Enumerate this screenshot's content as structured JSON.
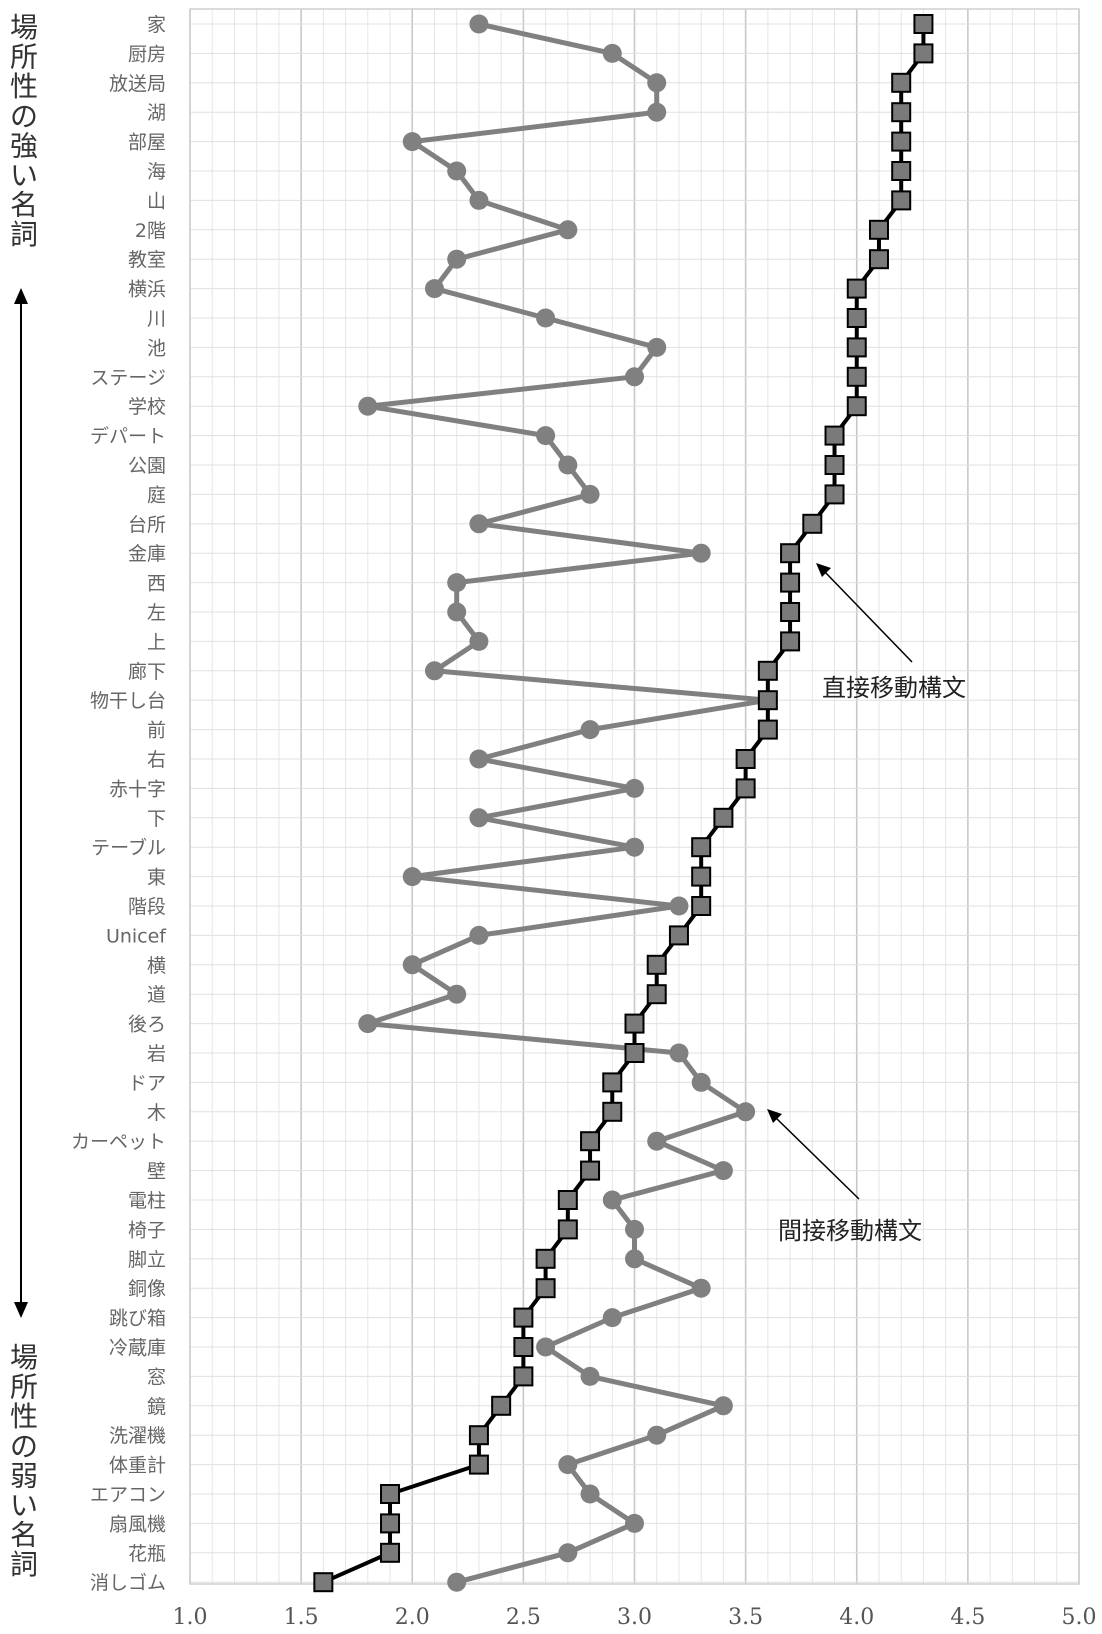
{
  "chart_data": {
    "type": "line",
    "orientation": "horizontal",
    "categories": [
      "家",
      "厨房",
      "放送局",
      "湖",
      "部屋",
      "海",
      "山",
      "2階",
      "教室",
      "横浜",
      "川",
      "池",
      "ステージ",
      "学校",
      "デパート",
      "公園",
      "庭",
      "台所",
      "金庫",
      "西",
      "左",
      "上",
      "廊下",
      "物干し台",
      "前",
      "右",
      "赤十字",
      "下",
      "テーブル",
      "東",
      "階段",
      "Unicef",
      "横",
      "道",
      "後ろ",
      "岩",
      "ドア",
      "木",
      "カーペット",
      "壁",
      "電柱",
      "椅子",
      "脚立",
      "銅像",
      "跳び箱",
      "冷蔵庫",
      "窓",
      "鏡",
      "洗濯機",
      "体重計",
      "エアコン",
      "扇風機",
      "花瓶",
      "消しゴム"
    ],
    "series": [
      {
        "annotation_label": "直接移動構文",
        "marker": "square",
        "color": "#000000",
        "values": [
          4.3,
          4.3,
          4.2,
          4.2,
          4.2,
          4.2,
          4.2,
          4.1,
          4.1,
          4.0,
          4.0,
          4.0,
          4.0,
          4.0,
          3.9,
          3.9,
          3.9,
          3.8,
          3.7,
          3.7,
          3.7,
          3.7,
          3.6,
          3.6,
          3.6,
          3.5,
          3.5,
          3.4,
          3.3,
          3.3,
          3.3,
          3.2,
          3.1,
          3.1,
          3.0,
          3.0,
          2.9,
          2.9,
          2.8,
          2.8,
          2.7,
          2.7,
          2.6,
          2.6,
          2.5,
          2.5,
          2.5,
          2.4,
          2.3,
          2.3,
          1.9,
          1.9,
          1.9,
          1.6
        ]
      },
      {
        "annotation_label": "間接移動構文",
        "marker": "circle",
        "color": "#808080",
        "values": [
          2.3,
          2.9,
          3.1,
          3.1,
          2.0,
          2.2,
          2.3,
          2.7,
          2.2,
          2.1,
          2.6,
          3.1,
          3.0,
          1.8,
          2.6,
          2.7,
          2.8,
          2.3,
          3.3,
          2.2,
          2.2,
          2.3,
          2.1,
          3.6,
          2.8,
          2.3,
          3.0,
          2.3,
          3.0,
          2.0,
          3.2,
          2.3,
          2.0,
          2.2,
          1.8,
          3.2,
          3.3,
          3.5,
          3.1,
          3.4,
          2.9,
          3.0,
          3.0,
          3.3,
          2.9,
          2.6,
          2.8,
          3.4,
          3.1,
          2.7,
          2.8,
          3.0,
          2.7,
          2.2
        ]
      }
    ],
    "xlim": [
      1.0,
      5.0
    ],
    "xticks": [
      "1.0",
      "1.5",
      "2.0",
      "2.5",
      "3.0",
      "3.5",
      "4.0",
      "4.5",
      "5.0"
    ],
    "grid": true,
    "side_labels": {
      "top": [
        "場",
        "所",
        "性",
        "の",
        "強",
        "い",
        "名",
        "詞"
      ],
      "bottom": [
        "場",
        "所",
        "性",
        "の",
        "弱",
        "い",
        "名",
        "詞"
      ]
    },
    "annotations": [
      "直接移動構文",
      "間接移動構文"
    ]
  }
}
